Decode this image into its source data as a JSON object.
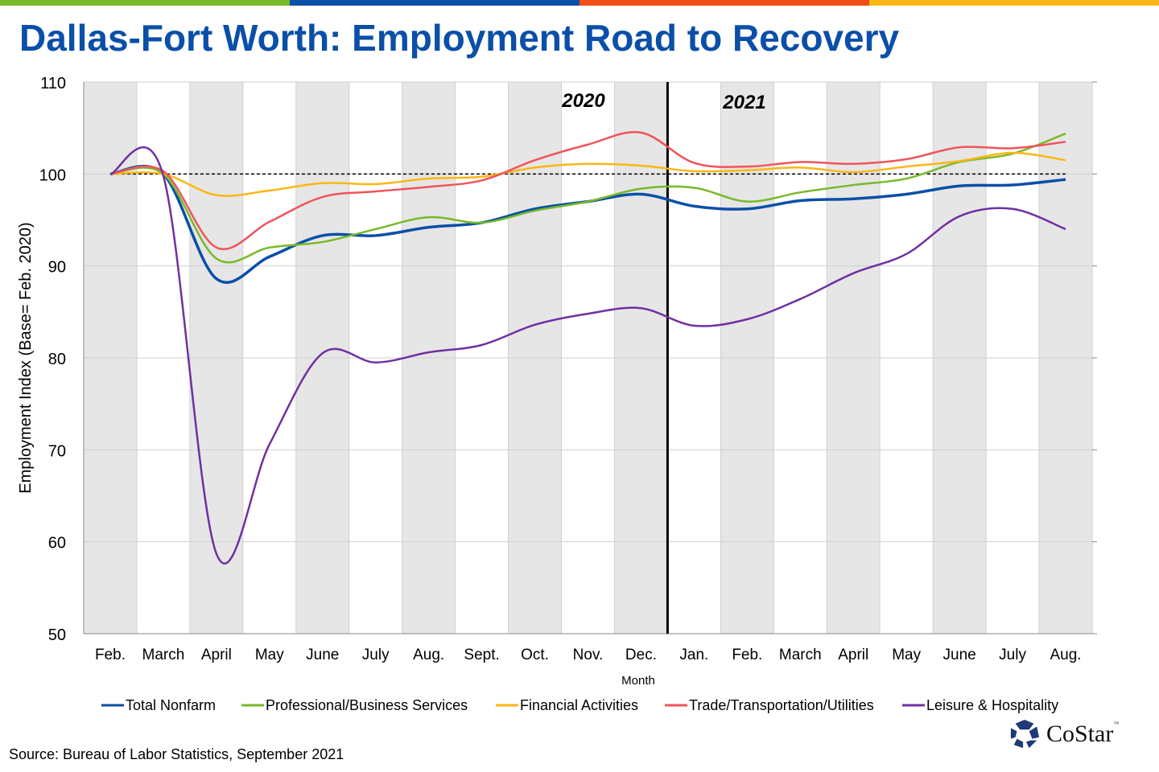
{
  "header": {
    "title": "Dallas-Fort Worth: Employment Road to Recovery",
    "bar_colors": [
      "#78b928",
      "#0a4fa8",
      "#f04e14",
      "#fcb614"
    ]
  },
  "footer": {
    "source": "Source: Bureau of Labor Statistics, September 2021",
    "logo": "CoStar",
    "logo_tm": "™"
  },
  "chart_data": {
    "type": "line",
    "title": "Dallas-Fort Worth: Employment Road to Recovery",
    "xlabel": "Month",
    "ylabel": "Employment Index (Base= Feb. 2020)",
    "ylim": [
      50,
      110
    ],
    "yticks": [
      50,
      60,
      70,
      80,
      90,
      100,
      110
    ],
    "categories": [
      "Feb.",
      "March",
      "April",
      "May",
      "June",
      "July",
      "Aug.",
      "Sept.",
      "Oct.",
      "Nov.",
      "Dec.",
      "Jan.",
      "Feb.",
      "March",
      "April",
      "May",
      "June",
      "July",
      "Aug."
    ],
    "year_labels": [
      "2020",
      "2021"
    ],
    "reference_line": 100,
    "legend_position": "bottom",
    "series": [
      {
        "name": "Total Nonfarm",
        "color": "#0a4fa8",
        "values": [
          100,
          100,
          88.6,
          91,
          93.3,
          93.3,
          94.2,
          94.7,
          96.2,
          97,
          97.8,
          96.5,
          96.2,
          97.1,
          97.3,
          97.8,
          98.7,
          98.8,
          99.4
        ]
      },
      {
        "name": "Professional/Business Services",
        "color": "#78b928",
        "values": [
          100,
          100,
          90.8,
          92,
          92.6,
          94,
          95.3,
          94.7,
          96,
          97,
          98.4,
          98.5,
          97,
          98,
          98.8,
          99.5,
          101.3,
          102.2,
          104.4
        ]
      },
      {
        "name": "Financial Activities",
        "color": "#fcb614",
        "values": [
          100,
          100,
          97.7,
          98.2,
          99,
          98.9,
          99.5,
          99.7,
          100.7,
          101.1,
          100.9,
          100.3,
          100.4,
          100.7,
          100.2,
          100.8,
          101.4,
          102.3,
          101.5
        ]
      },
      {
        "name": "Trade/Transportation/Utilities",
        "color": "#f0545a",
        "values": [
          100,
          100.3,
          92,
          94.8,
          97.5,
          98.1,
          98.6,
          99.3,
          101.5,
          103.2,
          104.5,
          101.2,
          100.8,
          101.3,
          101.1,
          101.6,
          102.9,
          102.8,
          103.5
        ]
      },
      {
        "name": "Leisure & Hospitality",
        "color": "#7030a0",
        "values": [
          100,
          99.8,
          58.7,
          70.6,
          80.5,
          79.5,
          80.6,
          81.4,
          83.6,
          84.8,
          85.4,
          83.5,
          84.2,
          86.4,
          89.2,
          91.3,
          95.4,
          96.2,
          94
        ]
      }
    ]
  }
}
